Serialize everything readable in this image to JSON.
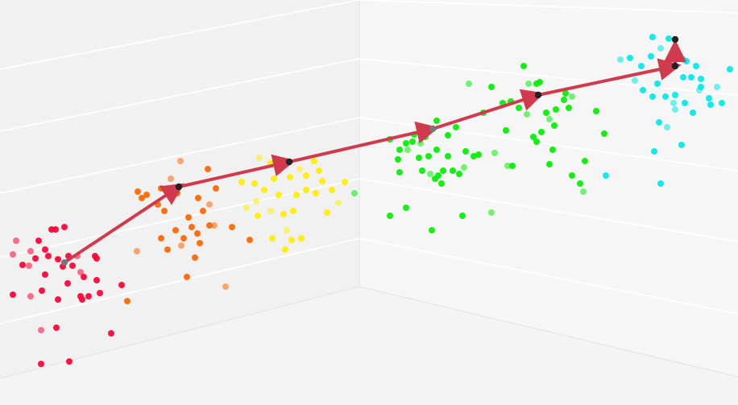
{
  "chart_data": {
    "type": "scatter",
    "title": "",
    "xlabel": "",
    "ylabel": "",
    "grid": true,
    "projection": "3d",
    "clusters": [
      {
        "color": "#ff0033",
        "points": [
          [
            20,
            299
          ],
          [
            48,
            299
          ],
          [
            69,
            285
          ],
          [
            80,
            282
          ],
          [
            64,
            285
          ],
          [
            38,
            312
          ],
          [
            44,
            321
          ],
          [
            60,
            318
          ],
          [
            72,
            322
          ],
          [
            85,
            318
          ],
          [
            96,
            318
          ],
          [
            118,
            318
          ],
          [
            120,
            321
          ],
          [
            78,
            331
          ],
          [
            90,
            330
          ],
          [
            100,
            338
          ],
          [
            120,
            348
          ],
          [
            104,
            344
          ],
          [
            151,
            354
          ],
          [
            84,
            352
          ],
          [
            16,
            316
          ],
          [
            28,
            329
          ],
          [
            56,
            341
          ],
          [
            52,
            361
          ],
          [
            16,
            366
          ],
          [
            38,
            368
          ],
          [
            72,
            372
          ],
          [
            102,
            372
          ],
          [
            110,
            368
          ],
          [
            124,
            364
          ],
          [
            51,
            410
          ],
          [
            70,
            407
          ],
          [
            138,
            414
          ],
          [
            51,
            452
          ],
          [
            86,
            449
          ],
          [
            36,
            330
          ],
          [
            56,
            310
          ],
          [
            100,
            368
          ]
        ]
      },
      {
        "color": "#ff6600",
        "points": [
          [
            224,
            200
          ],
          [
            258,
            210
          ],
          [
            171,
            238
          ],
          [
            176,
            246
          ],
          [
            200,
            234
          ],
          [
            212,
            222
          ],
          [
            268,
            234
          ],
          [
            196,
            254
          ],
          [
            204,
            262
          ],
          [
            246,
            246
          ],
          [
            260,
            254
          ],
          [
            252,
            262
          ],
          [
            234,
            270
          ],
          [
            218,
            286
          ],
          [
            238,
            282
          ],
          [
            266,
            280
          ],
          [
            200,
            296
          ],
          [
            228,
            296
          ],
          [
            248,
            302
          ],
          [
            208,
            310
          ],
          [
            170,
            312
          ],
          [
            288,
            282
          ],
          [
            310,
            298
          ],
          [
            242,
            320
          ],
          [
            232,
            344
          ],
          [
            280,
            356
          ],
          [
            158,
            374
          ],
          [
            182,
            242
          ],
          [
            220,
            240
          ],
          [
            260,
            280
          ],
          [
            225,
            305
          ],
          [
            245,
            290
          ]
        ]
      },
      {
        "color": "#ffee00",
        "points": [
          [
            322,
            196
          ],
          [
            336,
            203
          ],
          [
            346,
            212
          ],
          [
            340,
            222
          ],
          [
            316,
            228
          ],
          [
            372,
            210
          ],
          [
            380,
            218
          ],
          [
            396,
            212
          ],
          [
            390,
            200
          ],
          [
            360,
            220
          ],
          [
            306,
            258
          ],
          [
            328,
            236
          ],
          [
            346,
            242
          ],
          [
            368,
            242
          ],
          [
            380,
            236
          ],
          [
            336,
            262
          ],
          [
            352,
            266
          ],
          [
            364,
            262
          ],
          [
            392,
            240
          ],
          [
            412,
            236
          ],
          [
            420,
            252
          ],
          [
            406,
            264
          ],
          [
            428,
            226
          ],
          [
            300,
            226
          ],
          [
            320,
            268
          ],
          [
            356,
            286
          ],
          [
            362,
            298
          ],
          [
            374,
            296
          ],
          [
            338,
            296
          ],
          [
            354,
            310
          ],
          [
            318,
            250
          ],
          [
            400,
            225
          ]
        ]
      },
      {
        "color": "#00ee00",
        "points": [
          [
            440,
            240
          ],
          [
            484,
            173
          ],
          [
            496,
            186
          ],
          [
            504,
            178
          ],
          [
            514,
            167
          ],
          [
            522,
            178
          ],
          [
            528,
            170
          ],
          [
            542,
            150
          ],
          [
            556,
            168
          ],
          [
            566,
            158
          ],
          [
            506,
            186
          ],
          [
            520,
            196
          ],
          [
            532,
            194
          ],
          [
            542,
            186
          ],
          [
            524,
            212
          ],
          [
            534,
            216
          ],
          [
            544,
            218
          ],
          [
            556,
            194
          ],
          [
            562,
            212
          ],
          [
            570,
            216
          ],
          [
            576,
            208
          ],
          [
            588,
            194
          ],
          [
            594,
            192
          ],
          [
            600,
            140
          ],
          [
            610,
            108
          ],
          [
            614,
            190
          ],
          [
            624,
            128
          ],
          [
            634,
            126
          ],
          [
            628,
            162
          ],
          [
            650,
            82
          ],
          [
            656,
            104
          ],
          [
            666,
            104
          ],
          [
            668,
            118
          ],
          [
            670,
            102
          ],
          [
            644,
            134
          ],
          [
            654,
            142
          ],
          [
            662,
            170
          ],
          [
            666,
            176
          ],
          [
            672,
            164
          ],
          [
            678,
            140
          ],
          [
            682,
            148
          ],
          [
            688,
            156
          ],
          [
            690,
            136
          ],
          [
            700,
            124
          ],
          [
            702,
            116
          ],
          [
            710,
            120
          ],
          [
            706,
            134
          ],
          [
            740,
            138
          ],
          [
            750,
            166
          ],
          [
            686,
            186
          ],
          [
            582,
            104
          ],
          [
            484,
            268
          ],
          [
            504,
            258
          ],
          [
            536,
            286
          ],
          [
            574,
            268
          ],
          [
            610,
            264
          ],
          [
            494,
            198
          ],
          [
            540,
            222
          ],
          [
            548,
            228
          ],
          [
            512,
            176
          ],
          [
            630,
            206
          ],
          [
            636,
            206
          ],
          [
            682,
            204
          ],
          [
            710,
            218
          ],
          [
            720,
            228
          ],
          [
            724,
            238
          ],
          [
            726,
            200
          ],
          [
            496,
            214
          ],
          [
            550,
            212
          ],
          [
            578,
            188
          ]
        ]
      },
      {
        "color": "#00e8e8",
        "points": [
          [
            770,
            74
          ],
          [
            782,
            72
          ],
          [
            796,
            82
          ],
          [
            808,
            70
          ],
          [
            810,
            46
          ],
          [
            820,
            60
          ],
          [
            830,
            48
          ],
          [
            838,
            70
          ],
          [
            848,
            74
          ],
          [
            822,
            88
          ],
          [
            788,
            100
          ],
          [
            798,
            112
          ],
          [
            810,
            120
          ],
          [
            816,
            104
          ],
          [
            826,
            120
          ],
          [
            836,
            128
          ],
          [
            848,
            96
          ],
          [
            858,
            96
          ],
          [
            864,
            82
          ],
          [
            870,
            98
          ],
          [
            890,
            108
          ],
          [
            906,
            86
          ],
          [
            838,
            118
          ],
          [
            850,
            128
          ],
          [
            860,
            140
          ],
          [
            868,
            112
          ],
          [
            880,
            122
          ],
          [
            882,
            130
          ],
          [
            896,
            128
          ],
          [
            818,
            152
          ],
          [
            828,
            158
          ],
          [
            846,
            180
          ],
          [
            812,
            188
          ],
          [
            820,
            228
          ],
          [
            752,
            218
          ],
          [
            838,
            136
          ],
          [
            852,
            76
          ],
          [
            870,
            108
          ]
        ]
      }
    ],
    "trajectory": [
      [
        80,
        326
      ],
      [
        222,
        232
      ],
      [
        359,
        201
      ],
      [
        537,
        160
      ],
      [
        668,
        118
      ],
      [
        838,
        82
      ]
    ],
    "terminal_point": [
      838,
      49
    ]
  }
}
